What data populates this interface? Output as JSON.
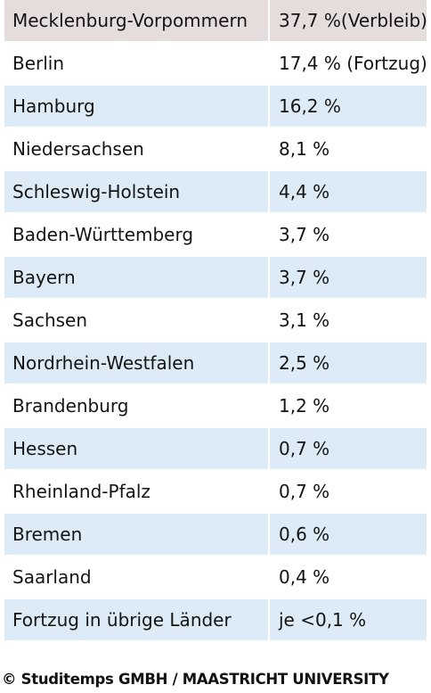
{
  "table": {
    "header": {
      "state": "Mecklenburg-Vorpommern",
      "value": "37,7 %(Verbleib)"
    },
    "rows": [
      {
        "state": "Berlin",
        "value": "17,4 % (Fortzug)"
      },
      {
        "state": "Hamburg",
        "value": "16,2 %"
      },
      {
        "state": "Niedersachsen",
        "value": "8,1 %"
      },
      {
        "state": "Schleswig-Holstein",
        "value": "4,4 %"
      },
      {
        "state": "Baden-Württemberg",
        "value": "3,7 %"
      },
      {
        "state": "Bayern",
        "value": "3,7 %"
      },
      {
        "state": "Sachsen",
        "value": "3,1 %"
      },
      {
        "state": "Nordrhein-Westfalen",
        "value": "2,5 %"
      },
      {
        "state": "Brandenburg",
        "value": "1,2 %"
      },
      {
        "state": "Hessen",
        "value": "0,7 %"
      },
      {
        "state": "Rheinland-Pfalz",
        "value": "0,7 %"
      },
      {
        "state": "Bremen",
        "value": "0,6 %"
      },
      {
        "state": "Saarland",
        "value": "0,4 %"
      },
      {
        "state": "Fortzug in übrige Länder",
        "value": "je <0,1 %"
      }
    ]
  },
  "credit": "© Studitemps GMBH / MAASTRICHT UNIVERSITY",
  "colors": {
    "header_bg": "#e5dcdc",
    "stripe_bg": "#dcebf5",
    "plain_bg": "#ffffff"
  }
}
